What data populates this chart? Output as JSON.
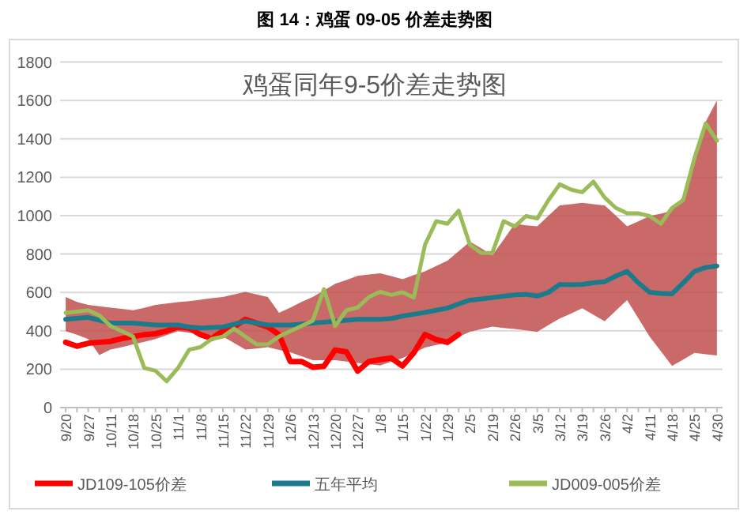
{
  "chart_data": {
    "type": "line",
    "title": "图 14：鸡蛋 09-05 价差走势图",
    "subtitle": "鸡蛋同年9-5价差走势图",
    "categories": [
      "9/20",
      null,
      "9/27",
      null,
      "10/11",
      null,
      "10/18",
      null,
      "10/25",
      null,
      "11/1",
      null,
      "11/8",
      null,
      "11/15",
      null,
      "11/22",
      null,
      "11/29",
      null,
      "12/6",
      null,
      "12/13",
      null,
      "12/20",
      null,
      "12/27",
      null,
      "1/8",
      null,
      "1/15",
      null,
      "1/22",
      null,
      "1/29",
      null,
      "2/5",
      null,
      "2/19",
      null,
      "2/26",
      null,
      "3/5",
      null,
      "3/12",
      null,
      "3/19",
      null,
      "3/26",
      null,
      "4/2",
      null,
      "4/11",
      null,
      "4/18",
      null,
      "4/25",
      null,
      "4/30"
    ],
    "series": [
      {
        "name": "JD109-105价差",
        "color": "#ff0000",
        "values": [
          340,
          320,
          335,
          340,
          345,
          360,
          370,
          380,
          385,
          400,
          420,
          415,
          380,
          360,
          400,
          420,
          460,
          440,
          420,
          380,
          240,
          240,
          210,
          215,
          300,
          290,
          190,
          240,
          250,
          258,
          217,
          285,
          381,
          354,
          340,
          381,
          null,
          null,
          null,
          null,
          null,
          null,
          null,
          null,
          null,
          null,
          null,
          null,
          null,
          null,
          null,
          null,
          null,
          null,
          null,
          null,
          null,
          null,
          null
        ]
      },
      {
        "name": "五年平均",
        "color": "#1b7b8c",
        "values": [
          460,
          465,
          470,
          455,
          440,
          440,
          440,
          435,
          430,
          430,
          430,
          420,
          415,
          418,
          420,
          435,
          450,
          440,
          430,
          430,
          430,
          435,
          440,
          445,
          450,
          455,
          460,
          460,
          460,
          464,
          477,
          486,
          496,
          507,
          518,
          540,
          560,
          566,
          573,
          580,
          587,
          590,
          581,
          600,
          642,
          640,
          642,
          650,
          656,
          685,
          710,
          650,
          601,
          595,
          593,
          650,
          710,
          730,
          738
        ],
        "lower": [
          398,
          380,
          357,
          274,
          302,
          315,
          329,
          343,
          357,
          378,
          398,
          390,
          384,
          377,
          370,
          336,
          302,
          308,
          315,
          300,
          288,
          268,
          247,
          247,
          247,
          240,
          233,
          226,
          219,
          240,
          258,
          285,
          313,
          326,
          340,
          368,
          395,
          408,
          422,
          415,
          409,
          402,
          395,
          430,
          464,
          490,
          518,
          484,
          450,
          505,
          560,
          465,
          370,
          294,
          217,
          250,
          285,
          278,
          272
        ],
        "upper": [
          576,
          550,
          535,
          528,
          521,
          514,
          507,
          520,
          535,
          542,
          549,
          555,
          562,
          570,
          576,
          590,
          603,
          590,
          576,
          494,
          521,
          550,
          576,
          610,
          645,
          665,
          686,
          693,
          700,
          685,
          669,
          690,
          710,
          738,
          765,
          815,
          864,
          830,
          793,
          875,
          958,
          950,
          944,
          1000,
          1053,
          1060,
          1067,
          1060,
          1053,
          1000,
          944,
          970,
          998,
          1010,
          1026,
          1100,
          1300,
          1490,
          1600
        ]
      },
      {
        "name": "JD009-005价差",
        "color": "#9bbb59",
        "values": [
          494,
          500,
          507,
          480,
          425,
          398,
          370,
          206,
          192,
          137,
          206,
          302,
          315,
          357,
          370,
          411,
          370,
          329,
          329,
          370,
          398,
          425,
          453,
          617,
          425,
          507,
          521,
          576,
          603,
          587,
          601,
          573,
          848,
          971,
          958,
          1026,
          848,
          806,
          806,
          971,
          944,
          998,
          985,
          1081,
          1163,
          1136,
          1122,
          1177,
          1094,
          1040,
          1012,
          1012,
          998,
          958,
          1040,
          1081,
          1300,
          1480,
          1390
        ]
      }
    ],
    "ylim": [
      0,
      1800
    ],
    "yticks": [
      0,
      200,
      400,
      600,
      800,
      1000,
      1200,
      1400,
      1600,
      1800
    ],
    "grid": "y",
    "legend": "bottom"
  }
}
